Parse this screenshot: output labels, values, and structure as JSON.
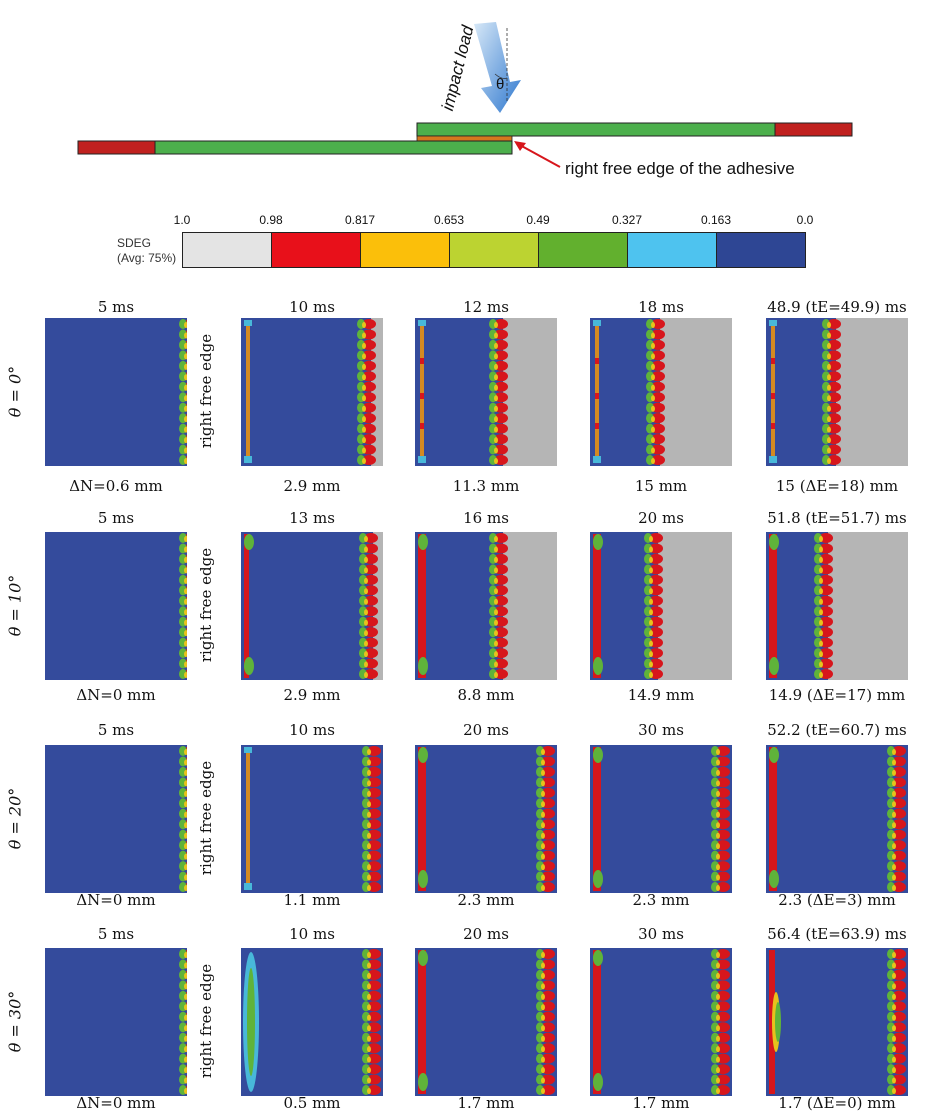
{
  "schematic": {
    "load_label": "impact load",
    "angle_symbol": "θ",
    "edge_annotation": "right free edge of the adhesive",
    "colors": {
      "adherend": "#4caf4c",
      "clamp": "#c0211f",
      "adhesive": "#d4781e",
      "arrow": "#3b82d0"
    }
  },
  "legend": {
    "title": "SDEG",
    "subtitle": "(Avg: 75%)",
    "ticks": [
      "1.0",
      "0.98",
      "0.817",
      "0.653",
      "0.49",
      "0.327",
      "0.163",
      "0.0"
    ],
    "colors": [
      "#e4e4e4",
      "#e8101a",
      "#fbbf0a",
      "#bcd331",
      "#62b02e",
      "#4ec3ef",
      "#2e4694"
    ]
  },
  "side_label": "right free edge",
  "rows": [
    {
      "angle_label": "θ = 0°",
      "times": [
        "5 ms",
        "10 ms",
        "12 ms",
        "18 ms",
        "48.9 (tE=49.9) ms"
      ],
      "displacements": [
        "ΔN=0.6 mm",
        "2.9 mm",
        "11.3 mm",
        "15 mm",
        "15 (ΔE=18) mm"
      ]
    },
    {
      "angle_label": "θ = 10°",
      "times": [
        "5 ms",
        "13 ms",
        "16 ms",
        "20 ms",
        "51.8 (tE=51.7) ms"
      ],
      "displacements": [
        "ΔN=0 mm",
        "2.9 mm",
        "8.8 mm",
        "14.9 mm",
        "14.9 (ΔE=17) mm"
      ]
    },
    {
      "angle_label": "θ = 20°",
      "times": [
        "5 ms",
        "10 ms",
        "20 ms",
        "30 ms",
        "52.2 (tE=60.7) ms"
      ],
      "displacements": [
        "ΔN=0 mm",
        "1.1 mm",
        "2.3 mm",
        "2.3 mm",
        "2.3 (ΔE=3) mm"
      ]
    },
    {
      "angle_label": "θ = 30°",
      "times": [
        "5 ms",
        "10 ms",
        "20 ms",
        "30 ms",
        "56.4 (tE=63.9) ms"
      ],
      "displacements": [
        "ΔN=0 mm",
        "0.5 mm",
        "1.7 mm",
        "1.7 mm",
        "1.7 (ΔE=0) mm"
      ]
    }
  ],
  "panel_colors": {
    "intact": "#344b9c",
    "failed": "#b5b5b5",
    "damage_red": "#d7161c",
    "damage_green": "#5fb33a",
    "damage_yellow": "#e7c21c",
    "damage_cyan": "#48b8d9",
    "damage_orange": "#d48a22"
  }
}
